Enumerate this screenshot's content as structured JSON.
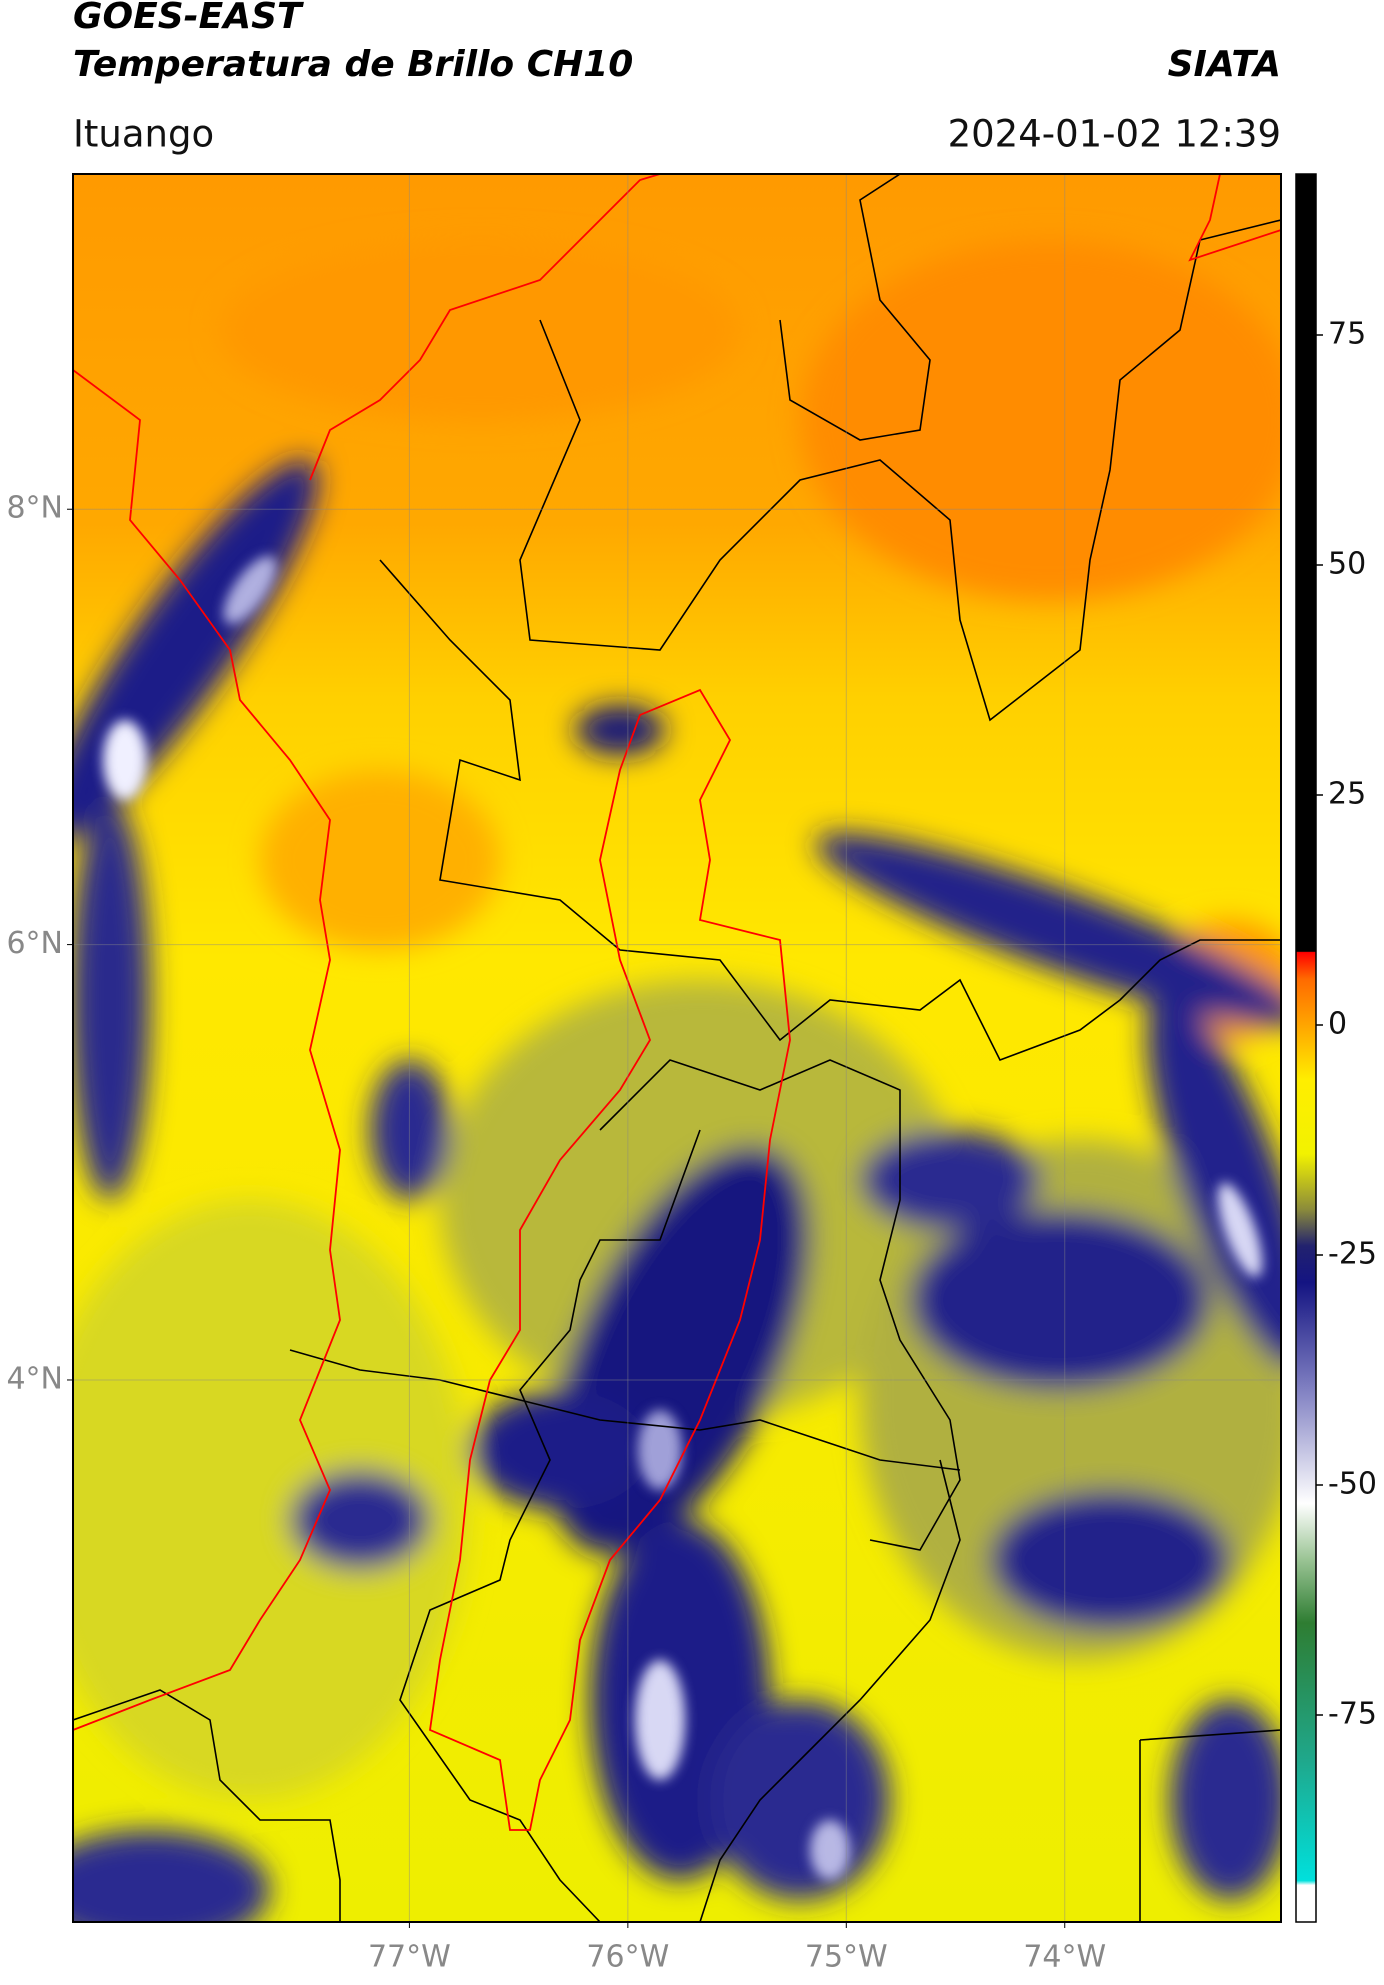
{
  "header": {
    "title": "GOES-EAST",
    "subtitle": "Temperatura de Brillo CH10",
    "source": "SIATA",
    "location": "Ituango",
    "datetime": "2024-01-02 12:39"
  },
  "map": {
    "xlim": [
      -78.54,
      -73.01
    ],
    "ylim": [
      1.51,
      9.54
    ],
    "xticks": [
      {
        "value": -77,
        "label": "77°W"
      },
      {
        "value": -76,
        "label": "76°W"
      },
      {
        "value": -75,
        "label": "75°W"
      },
      {
        "value": -74,
        "label": "74°W"
      }
    ],
    "yticks": [
      {
        "value": 4,
        "label": "4°N"
      },
      {
        "value": 6,
        "label": "6°N"
      },
      {
        "value": 8,
        "label": "8°N"
      }
    ],
    "grid": true
  },
  "colorbar": {
    "lim": [
      -97.5,
      92.5
    ],
    "ticks": [
      -75,
      -50,
      -25,
      0,
      25,
      50,
      75
    ],
    "stops": [
      [
        -97.5,
        "#ffffff"
      ],
      [
        -93.5,
        "#ffffff"
      ],
      [
        -93,
        "#00e0dc"
      ],
      [
        -80,
        "#1fa88c"
      ],
      [
        -65,
        "#2e7d32"
      ],
      [
        -58,
        "#9cc596"
      ],
      [
        -52,
        "#ffffff"
      ],
      [
        -40,
        "#8484c4"
      ],
      [
        -28,
        "#141482"
      ],
      [
        -24,
        "#22226e"
      ],
      [
        -20,
        "#8c8c3a"
      ],
      [
        -14,
        "#f2f200"
      ],
      [
        -6,
        "#ffee00"
      ],
      [
        0,
        "#ffa500"
      ],
      [
        5,
        "#ff6a00"
      ],
      [
        7.9,
        "#ff0000"
      ],
      [
        8,
        "#000000"
      ],
      [
        92.5,
        "#000000"
      ]
    ]
  }
}
